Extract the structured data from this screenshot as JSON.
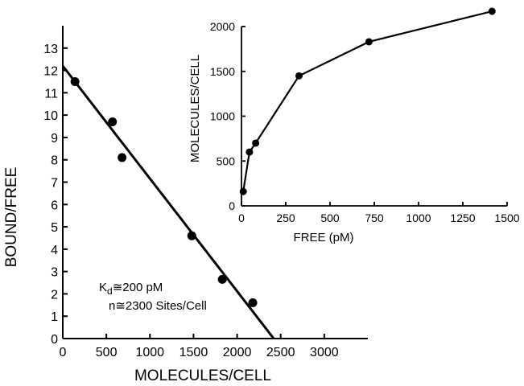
{
  "chart_data": [
    {
      "type": "scatter",
      "xlabel": "MOLECULES/CELL",
      "ylabel": "BOUND/FREE",
      "xlim": [
        0,
        3500
      ],
      "ylim": [
        0,
        14
      ],
      "xticks": [
        0,
        500,
        1000,
        1500,
        2000,
        2500,
        3000
      ],
      "yticks": [
        0,
        1,
        2,
        3,
        4,
        5,
        6,
        7,
        8,
        9,
        10,
        11,
        12,
        13
      ],
      "grid": false,
      "series": [
        {
          "x": [
            140,
            570,
            680,
            1480,
            1830,
            2180
          ],
          "y": [
            11.5,
            9.7,
            8.1,
            4.6,
            2.65,
            1.6
          ]
        }
      ],
      "fit_line": {
        "x": [
          0,
          2420
        ],
        "y": [
          12.2,
          0
        ]
      },
      "annotations": {
        "kd_symbol": "K",
        "kd_subscript": "d",
        "kd_rest": "≅200 pM",
        "sites": "n≅2300 Sites/Cell"
      }
    },
    {
      "type": "line",
      "xlabel": "FREE (pM)",
      "ylabel": "MOLECULES/CELL",
      "xlim": [
        0,
        1500
      ],
      "ylim": [
        0,
        2000
      ],
      "xticks": [
        0,
        250,
        500,
        750,
        1000,
        1250,
        1500
      ],
      "yticks": [
        0,
        500,
        1000,
        1500,
        2000
      ],
      "grid": false,
      "series": [
        {
          "x": [
            10,
            45,
            80,
            325,
            720,
            1415
          ],
          "y": [
            160,
            600,
            700,
            1450,
            1830,
            2170
          ]
        }
      ]
    }
  ]
}
